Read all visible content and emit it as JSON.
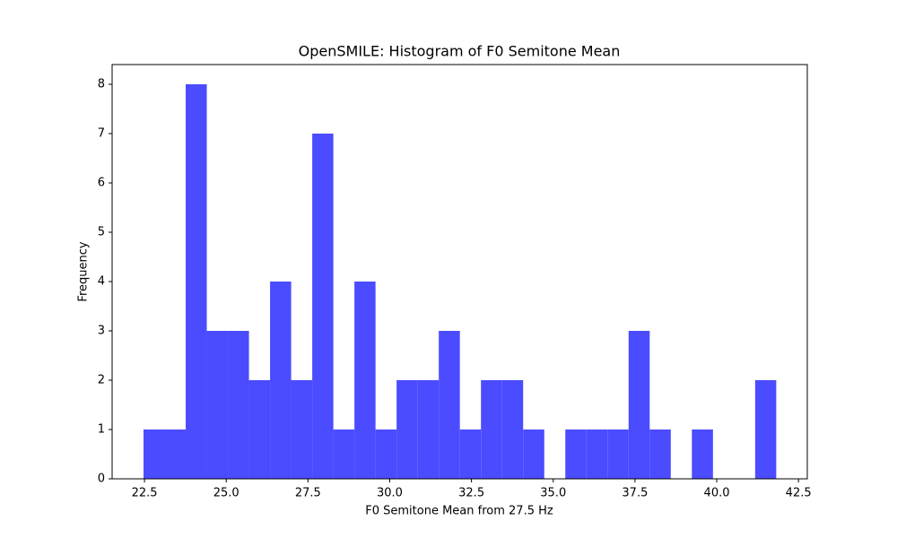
{
  "chart_data": {
    "type": "histogram",
    "title": "OpenSMILE: Histogram of F0 Semitone Mean",
    "x_label": "F0 Semitone Mean from 27.5 Hz",
    "y_label": "Frequency",
    "bins": [
      22.47,
      23.115,
      23.76,
      24.405,
      25.05,
      25.695,
      26.34,
      26.985,
      27.63,
      28.275,
      28.92,
      29.565,
      30.21,
      30.855,
      31.5,
      32.145,
      32.79,
      33.435,
      34.08,
      34.725,
      35.37,
      36.015,
      36.66,
      37.305,
      37.95,
      38.595,
      39.24,
      39.885,
      40.53,
      41.175,
      41.82
    ],
    "values": [
      1,
      1,
      8,
      3,
      3,
      2,
      4,
      2,
      7,
      1,
      4,
      1,
      2,
      2,
      3,
      1,
      2,
      2,
      1,
      0,
      1,
      1,
      1,
      3,
      1,
      0,
      1,
      0,
      0,
      2
    ],
    "color": "#4b4bff",
    "xlim": [
      21.51,
      42.77
    ],
    "xticks": [
      22.5,
      {
        "value": 25,
        "label": "25.0"
      },
      27.5,
      {
        "value": 30,
        "label": "30.0"
      },
      32.5,
      {
        "value": 35,
        "label": "35.0"
      },
      37.5,
      {
        "value": 40,
        "label": "40.0"
      },
      42.5
    ],
    "ylim": [
      0,
      8.4
    ],
    "yticks": [
      0,
      1,
      2,
      3,
      4,
      5,
      6,
      7,
      8
    ],
    "grid": false
  }
}
